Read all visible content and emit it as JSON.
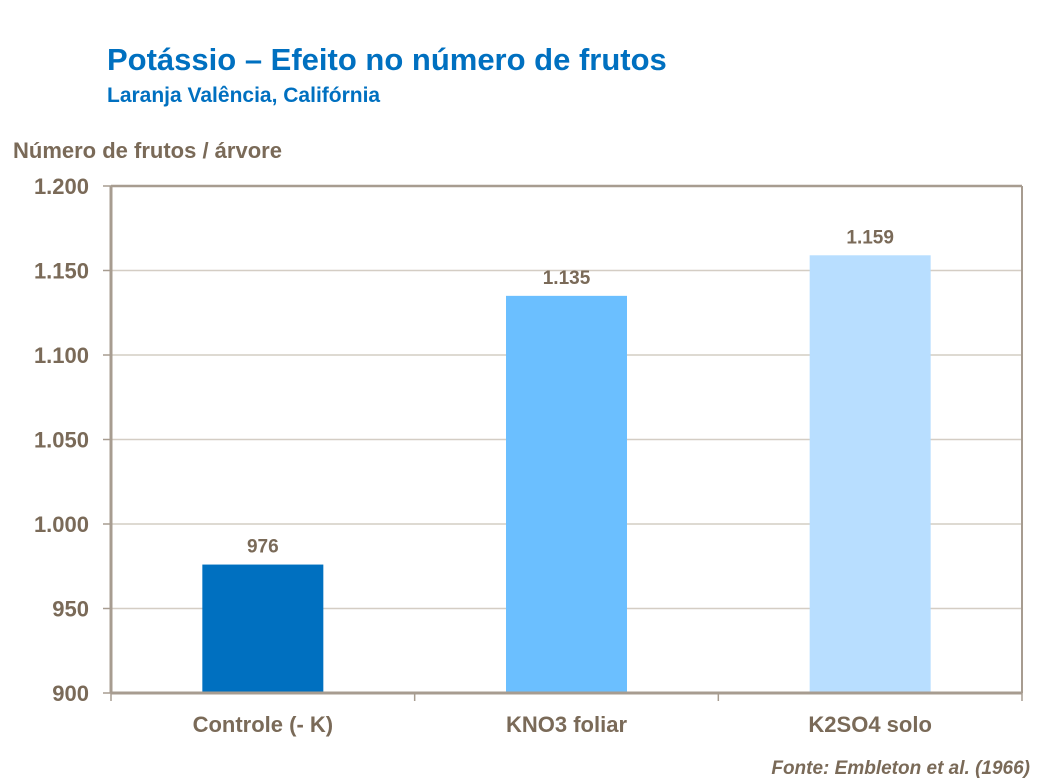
{
  "chart_data": {
    "type": "bar",
    "title": "Potássio – Efeito no número de frutos",
    "subtitle": "Laranja Valência, Califórnia",
    "xlabel": "",
    "ylabel": "Número de frutos / árvore",
    "categories": [
      "Controle (- K)",
      "KNO3 foliar",
      "K2SO4 solo"
    ],
    "values": [
      976,
      1135,
      1159
    ],
    "data_labels": [
      "976",
      "1.135",
      "1.159"
    ],
    "ylim": [
      900,
      1200
    ],
    "yticks": [
      900,
      950,
      1000,
      1050,
      1100,
      1150,
      1200
    ],
    "ytick_labels": [
      "900",
      "950",
      "1.000",
      "1.050",
      "1.100",
      "1.150",
      "1.200"
    ],
    "bar_colors": [
      "#0070C0",
      "#6BBFFF",
      "#B8DEFF"
    ],
    "grid": true,
    "legend": "none",
    "source": "Fonte: Embleton et al. (1966)"
  }
}
